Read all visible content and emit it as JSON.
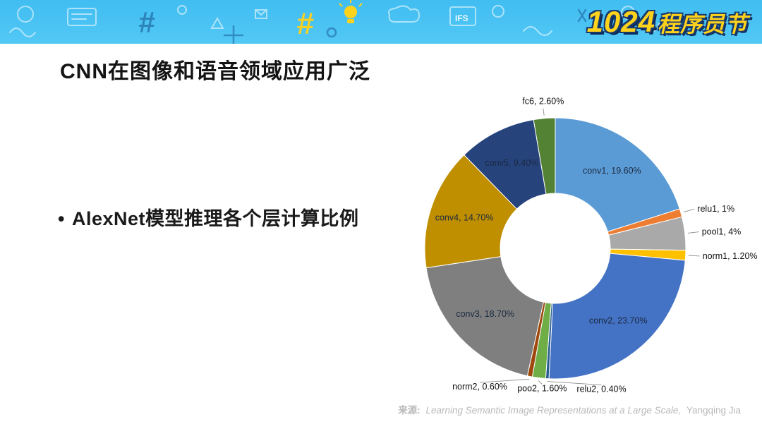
{
  "banner": {
    "logo_number": "1024",
    "logo_text": "程序员节",
    "doodle_text": "IFS",
    "background_color": "#47C2F3",
    "logo_color": "#FFD21C",
    "logo_outline_color": "#17396E"
  },
  "slide": {
    "title": "CNN在图像和语音领域应用广泛",
    "bullet_marker": "•",
    "bullet": "AlexNet模型推理各个层计算比例",
    "source_prefix": "来源:",
    "source_title": "Learning Semantic Image Representations at a Large Scale,",
    "source_author": "Yangqing Jia"
  },
  "chart_data": {
    "type": "pie",
    "variant": "donut",
    "title": "",
    "legend_position": "none",
    "start_angle_deg": 0,
    "direction": "clockwise",
    "categories": [
      "conv1",
      "relu1",
      "pool1",
      "norm1",
      "conv2",
      "relu2",
      "poo2",
      "norm2",
      "conv3",
      "conv4",
      "conv5",
      "fc6"
    ],
    "values": [
      19.6,
      1,
      4,
      1.2,
      23.7,
      0.4,
      1.6,
      0.6,
      18.7,
      14.7,
      9.4,
      2.6
    ],
    "labels": [
      "conv1, 19.60%",
      "relu1, 1%",
      "pool1, 4%",
      "norm1, 1.20%",
      "conv2, 23.70%",
      "relu2, 0.40%",
      "poo2, 1.60%",
      "norm2, 0.60%",
      "conv3, 18.70%",
      "conv4, 14.70%",
      "conv5, 9.40%",
      "fc6, 2.60%"
    ],
    "colors": [
      "#5B9BD5",
      "#ED7D31",
      "#A9A9A9",
      "#FFC000",
      "#4472C4",
      "#2A5E91",
      "#6FAD47",
      "#9E480E",
      "#7F7F7F",
      "#BF8F00",
      "#26437C",
      "#548235"
    ]
  }
}
